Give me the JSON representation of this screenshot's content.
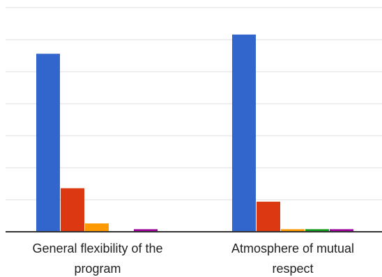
{
  "chart_data": {
    "type": "bar",
    "title": "",
    "xlabel": "",
    "ylabel": "",
    "ylim": [
      0,
      3.5
    ],
    "gridlines": [
      0,
      0.5,
      1,
      1.5,
      2,
      2.5,
      3,
      3.5
    ],
    "grid": true,
    "legend": "none",
    "categories": [
      [
        "General flexibility of the",
        "program"
      ],
      [
        "Atmosphere of mutual",
        "respect"
      ]
    ],
    "series": [
      {
        "color": "#3366cc",
        "values": [
          2.78,
          3.08
        ]
      },
      {
        "color": "#dc3912",
        "values": [
          0.68,
          0.47
        ]
      },
      {
        "color": "#ff9900",
        "values": [
          0.13,
          0.04
        ]
      },
      {
        "color": "#109618",
        "values": [
          0.0,
          0.04
        ]
      },
      {
        "color": "#990099",
        "values": [
          0.04,
          0.04
        ]
      }
    ]
  }
}
